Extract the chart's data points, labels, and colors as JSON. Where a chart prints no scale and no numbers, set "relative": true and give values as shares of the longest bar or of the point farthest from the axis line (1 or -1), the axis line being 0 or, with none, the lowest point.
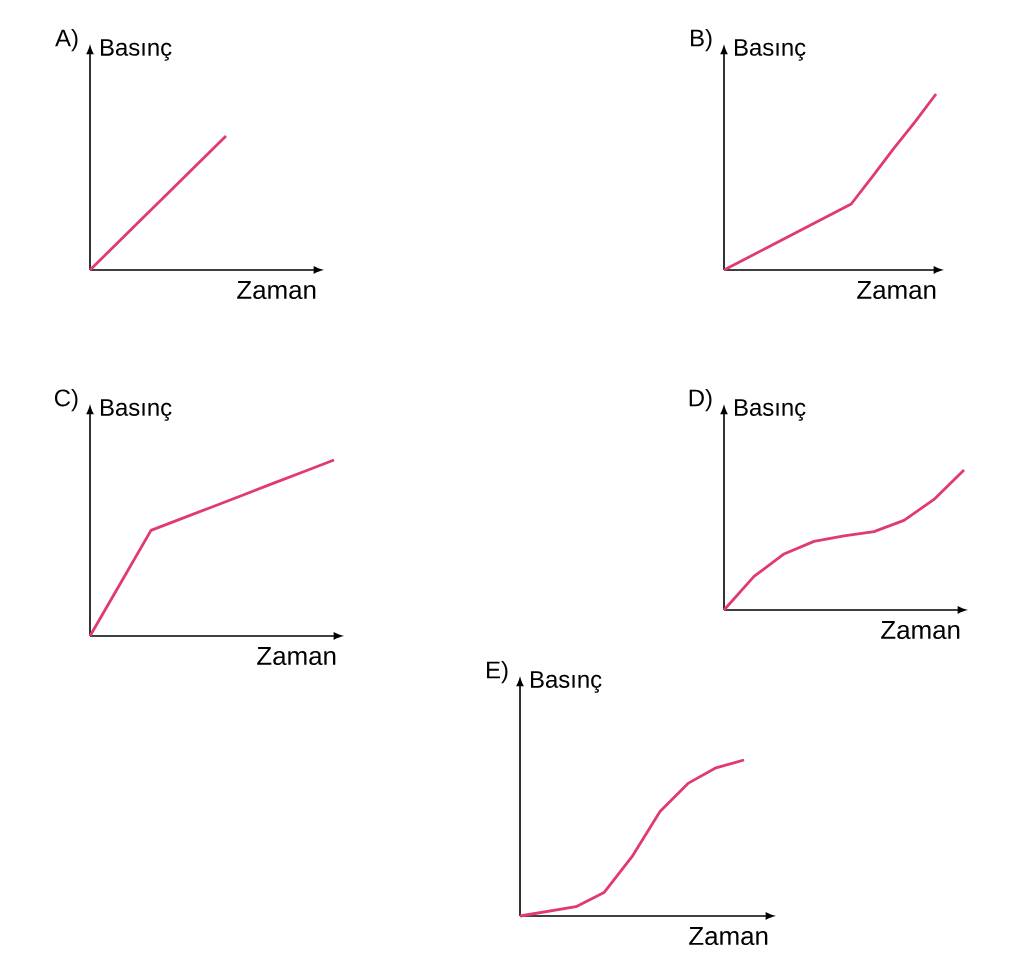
{
  "chart_data": [
    {
      "type": "line",
      "title": "A)",
      "xlabel": "Zaman",
      "ylabel": "Basınç",
      "relative": true,
      "categories": [
        null,
        null,
        null,
        null,
        null
      ],
      "series": [
        {
          "color": "#e03a70",
          "values": [
            0,
            0.25,
            0.5,
            0.75,
            1
          ]
        }
      ]
    },
    {
      "type": "line",
      "title": "B)",
      "xlabel": "Zaman",
      "ylabel": "Basınç",
      "relative": true,
      "categories": [
        null,
        null,
        null,
        null,
        null,
        null,
        null,
        null,
        null,
        null,
        null
      ],
      "series": [
        {
          "color": "#e03a70",
          "values": [
            0,
            0.0625,
            0.125,
            0.1875,
            0.25,
            0.3125,
            0.375,
            0.53,
            0.69,
            0.84,
            1
          ]
        }
      ]
    },
    {
      "type": "line",
      "title": "C)",
      "xlabel": "Zaman",
      "ylabel": "Basınç",
      "relative": true,
      "categories": [
        null,
        null,
        null,
        null,
        null,
        null,
        null,
        null,
        null
      ],
      "series": [
        {
          "color": "#e03a70",
          "values": [
            0,
            0.3,
            0.6,
            0.667,
            0.733,
            0.8,
            0.867,
            0.933,
            1
          ]
        }
      ]
    },
    {
      "type": "line",
      "title": "D)",
      "xlabel": "Zaman",
      "ylabel": "Basınç",
      "relative": true,
      "categories": [
        null,
        null,
        null,
        null,
        null,
        null,
        null,
        null,
        null
      ],
      "series": [
        {
          "color": "#e03a70",
          "values": [
            0,
            0.24,
            0.4,
            0.49,
            0.53,
            0.56,
            0.64,
            0.79,
            1
          ]
        }
      ]
    },
    {
      "type": "line",
      "title": "E)",
      "xlabel": "Zaman",
      "ylabel": "Basınç",
      "relative": true,
      "categories": [
        null,
        null,
        null,
        null,
        null,
        null,
        null,
        null,
        null
      ],
      "series": [
        {
          "color": "#e03a70",
          "values": [
            0,
            0.03,
            0.06,
            0.15,
            0.38,
            0.67,
            0.85,
            0.95,
            1
          ]
        }
      ]
    }
  ]
}
